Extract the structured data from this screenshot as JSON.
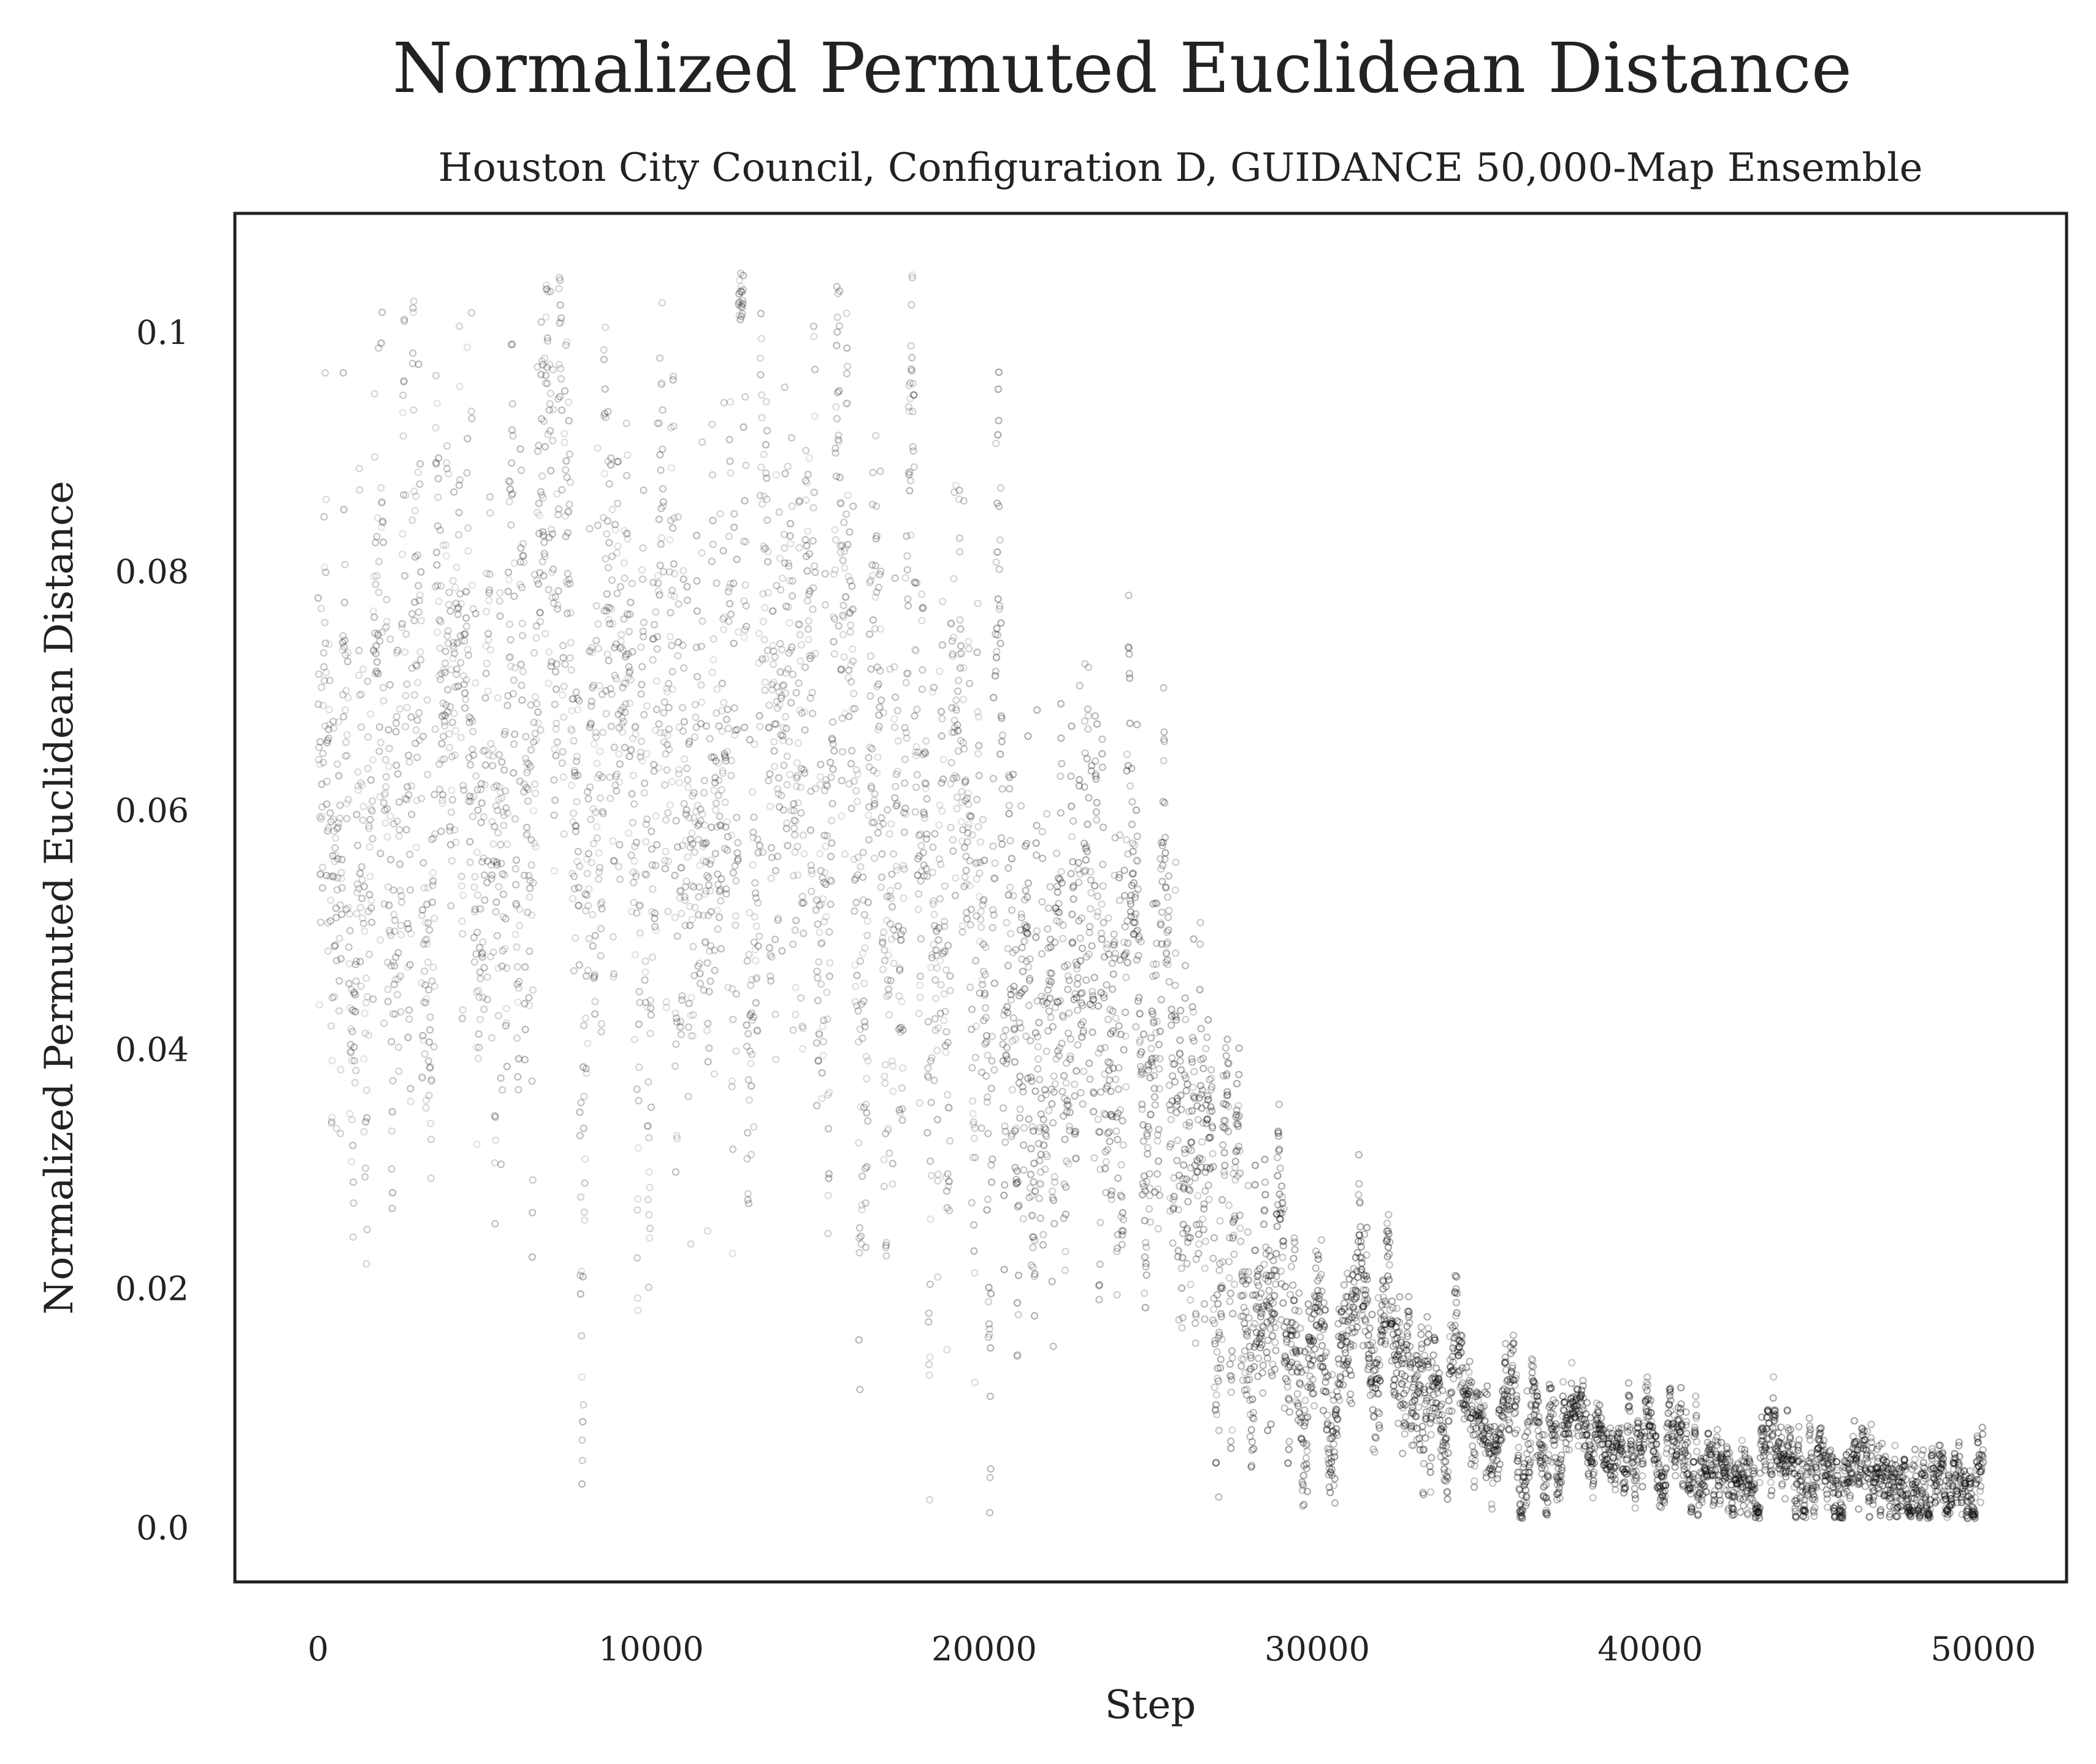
{
  "chart_data": {
    "type": "scatter",
    "title": "Normalized Permuted Euclidean Distance",
    "subtitle": "Houston City Council, Configuration D, GUIDANCE 50,000-Map Ensemble",
    "xlabel": "Step",
    "ylabel": "Normalized Permuted Euclidean Distance",
    "xlim": [
      -2500,
      52500
    ],
    "ylim": [
      -0.0045,
      0.11
    ],
    "x_ticks": [
      0,
      10000,
      20000,
      30000,
      40000,
      50000
    ],
    "x_tick_labels": [
      "0",
      "10000",
      "20000",
      "30000",
      "40000",
      "50000"
    ],
    "y_ticks": [
      0.0,
      0.02,
      0.04,
      0.06,
      0.08,
      0.1
    ],
    "y_tick_labels": [
      "0.0",
      "0.02",
      "0.04",
      "0.06",
      "0.08",
      "0.1"
    ],
    "grid": false,
    "marker_color": "#000000",
    "marker": "hollow-circle",
    "trend": {
      "x": [
        0,
        2500,
        5000,
        7500,
        10000,
        12500,
        15000,
        17500,
        19000,
        20000,
        21000,
        22000,
        23000,
        24000,
        25000,
        26000,
        27000,
        28000,
        29000,
        30000,
        31000,
        32000,
        33000,
        34000,
        35000,
        36000,
        37000,
        38000,
        39000,
        40000,
        42000,
        44000,
        46000,
        48000,
        50000
      ],
      "mean": [
        0.068,
        0.067,
        0.066,
        0.066,
        0.065,
        0.064,
        0.062,
        0.058,
        0.052,
        0.048,
        0.045,
        0.043,
        0.041,
        0.039,
        0.036,
        0.032,
        0.028,
        0.022,
        0.017,
        0.015,
        0.014,
        0.013,
        0.011,
        0.01,
        0.009,
        0.008,
        0.008,
        0.007,
        0.006,
        0.006,
        0.005,
        0.005,
        0.004,
        0.004,
        0.003
      ],
      "spread": [
        0.016,
        0.016,
        0.016,
        0.016,
        0.016,
        0.016,
        0.016,
        0.016,
        0.015,
        0.014,
        0.014,
        0.013,
        0.012,
        0.011,
        0.01,
        0.009,
        0.008,
        0.007,
        0.006,
        0.005,
        0.005,
        0.004,
        0.004,
        0.003,
        0.003,
        0.003,
        0.003,
        0.002,
        0.002,
        0.002,
        0.002,
        0.002,
        0.002,
        0.002,
        0.002
      ]
    }
  }
}
